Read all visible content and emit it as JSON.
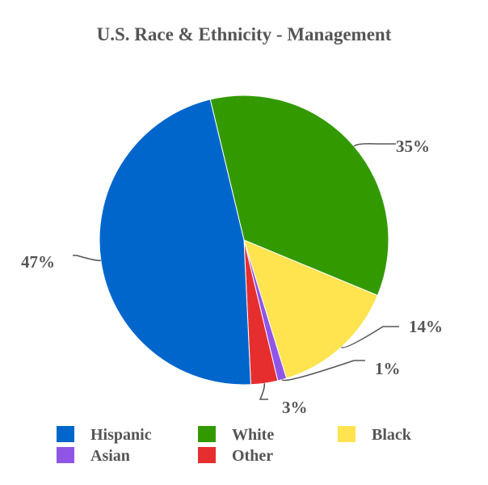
{
  "chart_data": {
    "type": "pie",
    "title": "U.S. Race & Ethnicity - Management",
    "legend_position": "bottom",
    "slices": [
      {
        "name": "White",
        "value": 35,
        "label": "35%",
        "color": "#339900"
      },
      {
        "name": "Black",
        "value": 14,
        "label": "14%",
        "color": "#FFE34F"
      },
      {
        "name": "Asian",
        "value": 1,
        "label": "1%",
        "color": "#9055E6"
      },
      {
        "name": "Other",
        "value": 3,
        "label": "3%",
        "color": "#E62E2E"
      },
      {
        "name": "Hispanic",
        "value": 47,
        "label": "47%",
        "color": "#0066CC"
      }
    ],
    "legend_order": [
      "Hispanic",
      "White",
      "Black",
      "Asian",
      "Other"
    ]
  }
}
